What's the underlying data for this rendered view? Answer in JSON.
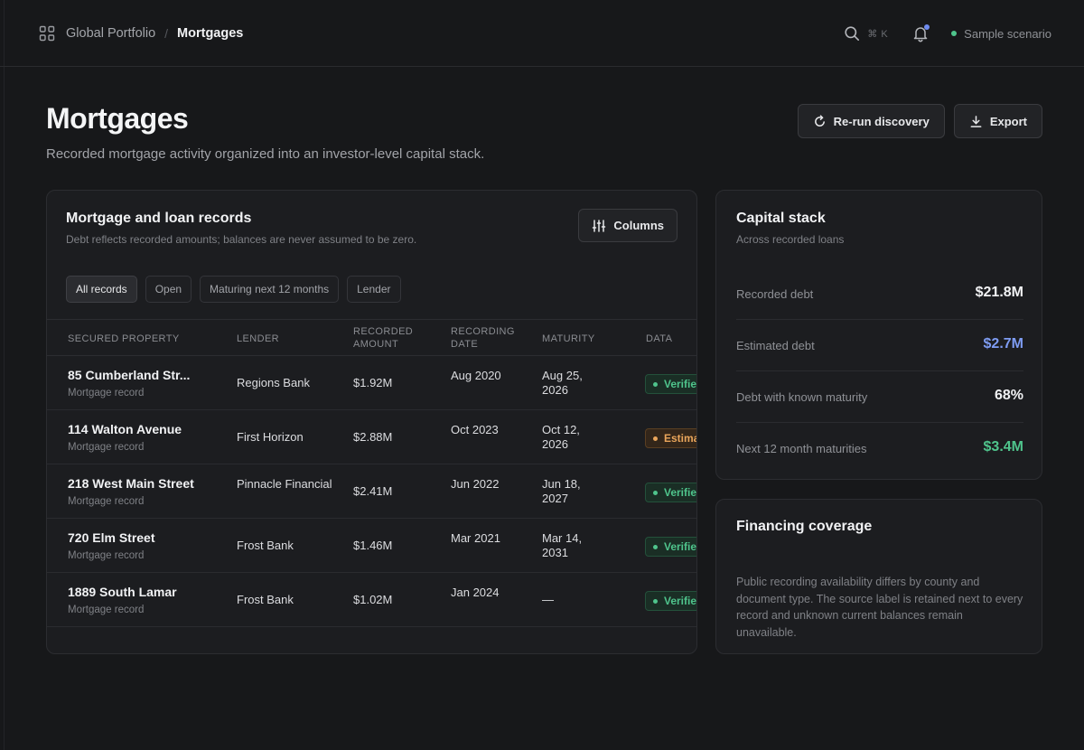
{
  "breadcrumb": {
    "parent": "Global Portfolio",
    "separator": "/",
    "current": "Mortgages"
  },
  "topbar": {
    "search_shortcut": "⌘ K",
    "scenario_label": "Sample scenario"
  },
  "header": {
    "title": "Mortgages",
    "subtitle": "Recorded mortgage activity organized into an investor-level capital stack.",
    "rerun_label": "Re-run discovery",
    "export_label": "Export"
  },
  "records": {
    "title": "Mortgage and loan records",
    "subtitle": "Debt reflects recorded amounts; balances are never assumed to be zero.",
    "columns_label": "Columns",
    "filters": [
      "All records",
      "Open",
      "Maturing next 12 months",
      "Lender"
    ],
    "headers": {
      "property": "SECURED PROPERTY",
      "lender": "LENDER",
      "amount": "RECORDED AMOUNT",
      "date": "RECORDING DATE",
      "maturity": "MATURITY",
      "data": "DATA"
    },
    "rows": [
      {
        "property": "85 Cumberland Str...",
        "type": "Mortgage record",
        "lender": "Regions Bank",
        "amount": "$1.92M",
        "date": "Aug 2020",
        "maturity": "Aug 25, 2026",
        "status": "Verified"
      },
      {
        "property": "114 Walton Avenue",
        "type": "Mortgage record",
        "lender": "First Horizon",
        "amount": "$2.88M",
        "date": "Oct 2023",
        "maturity": "Oct 12, 2026",
        "status": "Estimated"
      },
      {
        "property": "218 West Main Street",
        "type": "Mortgage record",
        "lender": "Pinnacle Financial",
        "amount": "$2.41M",
        "date": "Jun 2022",
        "maturity": "Jun 18, 2027",
        "status": "Verified"
      },
      {
        "property": "720 Elm Street",
        "type": "Mortgage record",
        "lender": "Frost Bank",
        "amount": "$1.46M",
        "date": "Mar 2021",
        "maturity": "Mar 14, 2031",
        "status": "Verified"
      },
      {
        "property": "1889 South Lamar",
        "type": "Mortgage record",
        "lender": "Frost Bank",
        "amount": "$1.02M",
        "date": "Jan 2024",
        "maturity": "—",
        "status": "Verified"
      }
    ]
  },
  "capital_stack": {
    "title": "Capital stack",
    "subtitle": "Across recorded loans",
    "metrics": [
      {
        "label": "Recorded debt",
        "value": "$21.8M",
        "color": "#f1f2f4"
      },
      {
        "label": "Estimated debt",
        "value": "$2.7M",
        "color": "#7e9cf2"
      },
      {
        "label": "Debt with known maturity",
        "value": "68%",
        "color": "#f1f2f4"
      },
      {
        "label": "Next 12 month maturities",
        "value": "$3.4M",
        "color": "#4fc48c"
      }
    ]
  },
  "coverage": {
    "title": "Financing coverage",
    "text": "Public recording availability differs by county and document type. The source label is retained next to every record and unknown current balances remain unavailable."
  }
}
